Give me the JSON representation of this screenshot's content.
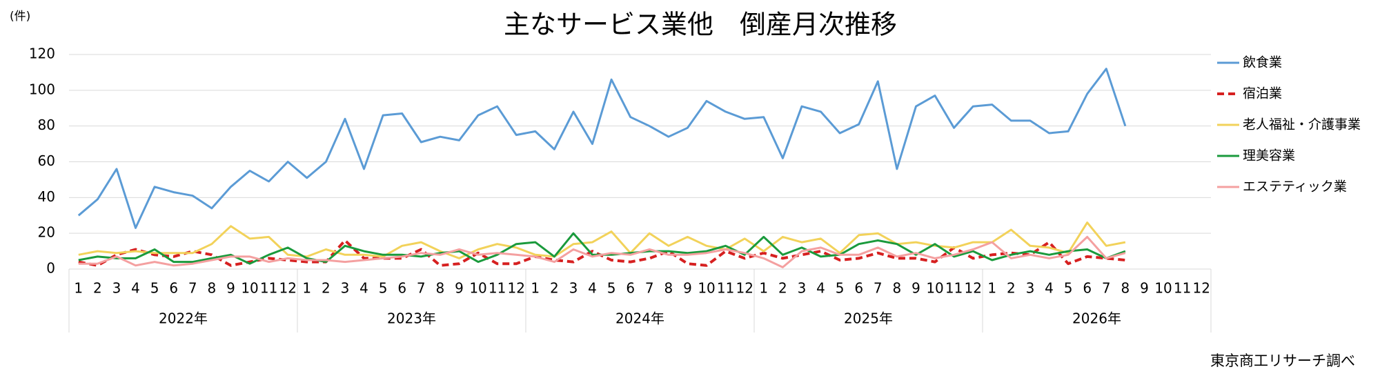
{
  "chart_data": {
    "type": "line",
    "title": "主なサービス業他　倒産月次推移",
    "y_unit_label": "(件)",
    "source": "東京商工リサーチ調べ",
    "categories": [
      "1",
      "2",
      "3",
      "4",
      "5",
      "6",
      "7",
      "8",
      "9",
      "10",
      "11",
      "12",
      "1",
      "2",
      "3",
      "4",
      "5",
      "6",
      "7",
      "8",
      "9",
      "10",
      "11",
      "12",
      "1",
      "2",
      "3",
      "4",
      "5",
      "6",
      "7",
      "8",
      "9",
      "10",
      "11",
      "12",
      "1",
      "2",
      "3",
      "4",
      "5",
      "6",
      "7",
      "8",
      "9",
      "10",
      "11",
      "12",
      "1",
      "2",
      "3",
      "4",
      "5",
      "6",
      "7",
      "8",
      "9",
      "10",
      "11",
      "12"
    ],
    "groups": [
      "2022年",
      "2023年",
      "2024年",
      "2025年",
      "2026年"
    ],
    "ylim": [
      0,
      120
    ],
    "yticks": [
      0,
      20,
      40,
      60,
      80,
      100,
      120
    ],
    "grid": true,
    "legend": "right",
    "series": [
      {
        "name": "飲食業",
        "color": "#5b9bd5",
        "style": "solid",
        "values": [
          30,
          39,
          56,
          23,
          46,
          43,
          41,
          34,
          46,
          55,
          49,
          60,
          51,
          60,
          84,
          56,
          86,
          87,
          71,
          74,
          72,
          86,
          91,
          75,
          77,
          67,
          88,
          70,
          106,
          85,
          80,
          74,
          79,
          94,
          88,
          84,
          85,
          62,
          91,
          88,
          76,
          81,
          105,
          56,
          91,
          97,
          79,
          91,
          92,
          83,
          83,
          76,
          77,
          98,
          112,
          80,
          null,
          null,
          null,
          null
        ]
      },
      {
        "name": "宿泊業",
        "color": "#d62020",
        "style": "dashed",
        "values": [
          4,
          2,
          8,
          11,
          8,
          7,
          10,
          8,
          2,
          4,
          6,
          5,
          4,
          4,
          16,
          6,
          6,
          6,
          11,
          2,
          3,
          9,
          3,
          3,
          7,
          5,
          4,
          10,
          5,
          4,
          6,
          10,
          3,
          2,
          10,
          6,
          9,
          6,
          8,
          10,
          5,
          6,
          9,
          6,
          6,
          4,
          12,
          6,
          8,
          9,
          8,
          15,
          3,
          7,
          6,
          5,
          null,
          null,
          null,
          null
        ]
      },
      {
        "name": "老人福祉・介護事業",
        "color": "#f2d25a",
        "style": "solid",
        "values": [
          8,
          10,
          9,
          10,
          9,
          9,
          9,
          14,
          24,
          17,
          18,
          8,
          7,
          11,
          8,
          8,
          7,
          13,
          15,
          10,
          6,
          11,
          14,
          12,
          8,
          7,
          14,
          15,
          21,
          9,
          20,
          13,
          18,
          13,
          11,
          17,
          10,
          18,
          15,
          17,
          9,
          19,
          20,
          14,
          15,
          13,
          12,
          15,
          15,
          22,
          13,
          12,
          9,
          26,
          13,
          15,
          null,
          null,
          null,
          null
        ]
      },
      {
        "name": "理美容業",
        "color": "#1a9a3c",
        "style": "solid",
        "values": [
          5,
          7,
          6,
          6,
          11,
          4,
          4,
          6,
          8,
          3,
          8,
          12,
          6,
          4,
          13,
          10,
          8,
          8,
          7,
          9,
          10,
          4,
          8,
          14,
          15,
          7,
          20,
          8,
          8,
          9,
          10,
          10,
          9,
          10,
          13,
          8,
          18,
          8,
          12,
          7,
          8,
          14,
          16,
          14,
          8,
          14,
          7,
          10,
          5,
          8,
          10,
          8,
          10,
          11,
          6,
          10,
          null,
          null,
          null,
          null
        ]
      },
      {
        "name": "エステティック業",
        "color": "#f4a0a0",
        "style": "solid",
        "values": [
          3,
          3,
          7,
          2,
          4,
          2,
          3,
          5,
          7,
          7,
          4,
          6,
          5,
          5,
          4,
          5,
          6,
          7,
          9,
          8,
          11,
          8,
          9,
          8,
          7,
          4,
          11,
          7,
          9,
          8,
          11,
          8,
          8,
          9,
          11,
          9,
          6,
          1,
          10,
          12,
          8,
          8,
          12,
          7,
          9,
          6,
          8,
          11,
          15,
          6,
          8,
          6,
          8,
          18,
          6,
          9,
          null,
          null,
          null,
          null
        ]
      }
    ]
  }
}
